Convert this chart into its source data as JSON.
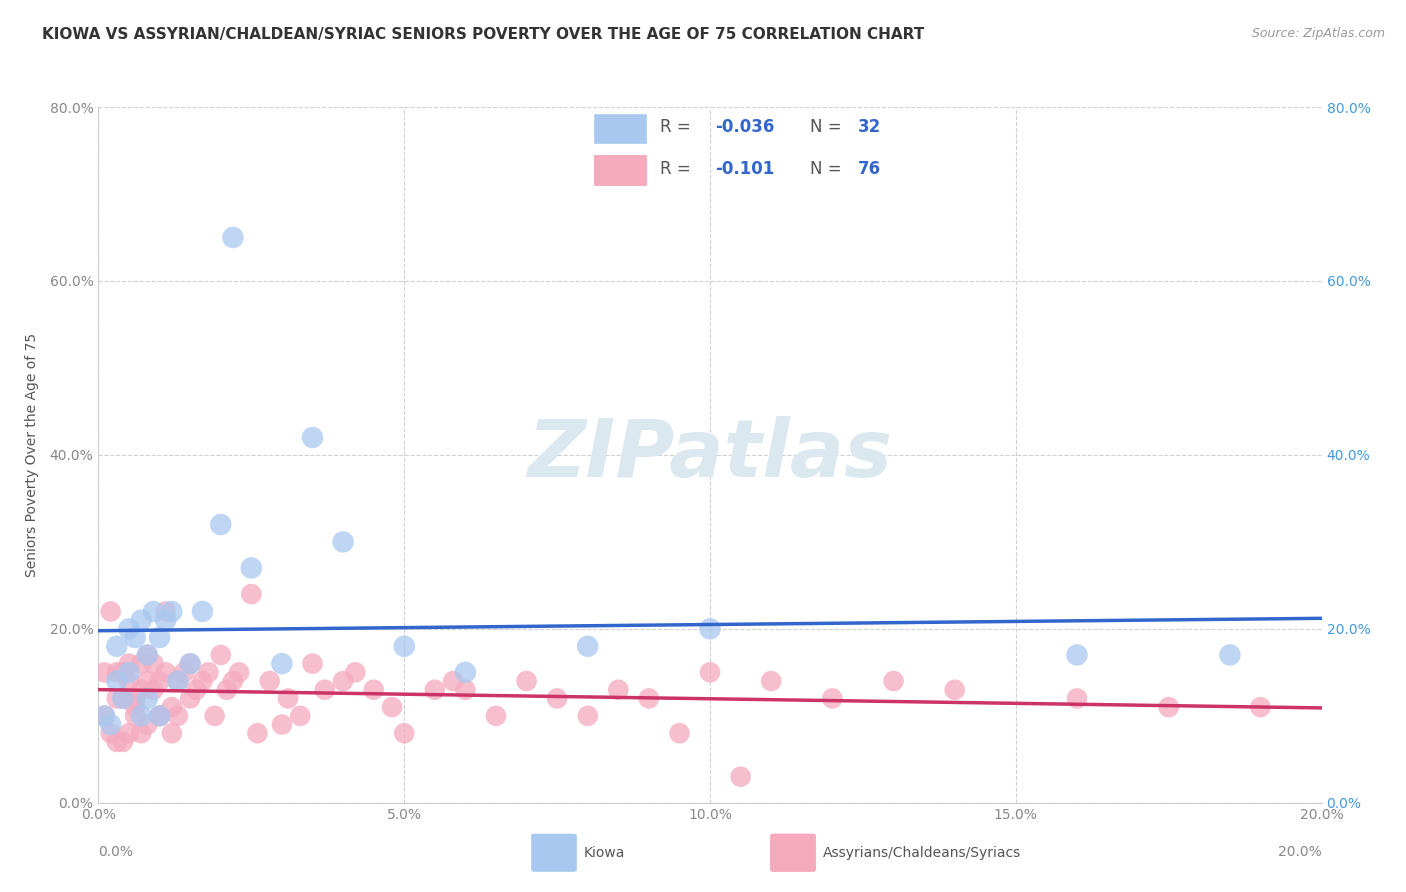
{
  "title": "KIOWA VS ASSYRIAN/CHALDEAN/SYRIAC SENIORS POVERTY OVER THE AGE OF 75 CORRELATION CHART",
  "source": "Source: ZipAtlas.com",
  "ylabel": "Seniors Poverty Over the Age of 75",
  "xlim": [
    0.0,
    0.2
  ],
  "ylim": [
    0.0,
    0.8
  ],
  "xticks": [
    0.0,
    0.05,
    0.1,
    0.15,
    0.2
  ],
  "yticks": [
    0.0,
    0.2,
    0.4,
    0.6,
    0.8
  ],
  "xtick_labels": [
    "0.0%",
    "5.0%",
    "10.0%",
    "15.0%",
    "20.0%"
  ],
  "ytick_labels": [
    "0.0%",
    "20.0%",
    "40.0%",
    "60.0%",
    "80.0%"
  ],
  "kiowa_R": -0.036,
  "kiowa_N": 32,
  "assyrian_R": -0.101,
  "assyrian_N": 76,
  "kiowa_color": "#a8c8f0",
  "assyrian_color": "#f5aabe",
  "trend_kiowa_color": "#3366cc",
  "trend_assyrian_color": "#cc3366",
  "background_color": "#ffffff",
  "grid_color": "#cccccc",
  "title_color": "#333333",
  "right_ytick_color": "#4499dd",
  "watermark_text_color": "#dce8f0",
  "legend_label_kiowa": "Kiowa",
  "legend_label_assyrian": "Assyrians/Chaldeans/Syriacs",
  "legend_text_color": "#3366cc",
  "kiowa_x": [
    0.001,
    0.002,
    0.003,
    0.003,
    0.004,
    0.005,
    0.005,
    0.006,
    0.007,
    0.007,
    0.008,
    0.008,
    0.009,
    0.01,
    0.01,
    0.011,
    0.012,
    0.013,
    0.015,
    0.017,
    0.02,
    0.022,
    0.025,
    0.03,
    0.035,
    0.04,
    0.05,
    0.06,
    0.08,
    0.1,
    0.16,
    0.185
  ],
  "kiowa_y": [
    0.1,
    0.09,
    0.18,
    0.14,
    0.12,
    0.2,
    0.15,
    0.19,
    0.1,
    0.21,
    0.17,
    0.12,
    0.22,
    0.19,
    0.1,
    0.21,
    0.22,
    0.14,
    0.16,
    0.22,
    0.32,
    0.65,
    0.27,
    0.16,
    0.42,
    0.3,
    0.18,
    0.15,
    0.18,
    0.2,
    0.17,
    0.17
  ],
  "assyrian_x": [
    0.001,
    0.001,
    0.002,
    0.002,
    0.003,
    0.003,
    0.003,
    0.004,
    0.004,
    0.004,
    0.005,
    0.005,
    0.005,
    0.006,
    0.006,
    0.006,
    0.007,
    0.007,
    0.007,
    0.008,
    0.008,
    0.008,
    0.009,
    0.009,
    0.01,
    0.01,
    0.01,
    0.011,
    0.011,
    0.012,
    0.012,
    0.013,
    0.013,
    0.014,
    0.015,
    0.015,
    0.016,
    0.017,
    0.018,
    0.019,
    0.02,
    0.021,
    0.022,
    0.023,
    0.025,
    0.026,
    0.028,
    0.03,
    0.031,
    0.033,
    0.035,
    0.037,
    0.04,
    0.042,
    0.045,
    0.048,
    0.05,
    0.055,
    0.058,
    0.06,
    0.065,
    0.07,
    0.075,
    0.08,
    0.085,
    0.09,
    0.095,
    0.1,
    0.105,
    0.11,
    0.12,
    0.13,
    0.14,
    0.16,
    0.175,
    0.19
  ],
  "assyrian_y": [
    0.15,
    0.1,
    0.22,
    0.08,
    0.12,
    0.07,
    0.15,
    0.12,
    0.07,
    0.15,
    0.14,
    0.08,
    0.16,
    0.11,
    0.1,
    0.12,
    0.16,
    0.13,
    0.08,
    0.14,
    0.17,
    0.09,
    0.13,
    0.16,
    0.14,
    0.1,
    0.1,
    0.15,
    0.22,
    0.11,
    0.08,
    0.14,
    0.1,
    0.15,
    0.16,
    0.12,
    0.13,
    0.14,
    0.15,
    0.1,
    0.17,
    0.13,
    0.14,
    0.15,
    0.24,
    0.08,
    0.14,
    0.09,
    0.12,
    0.1,
    0.16,
    0.13,
    0.14,
    0.15,
    0.13,
    0.11,
    0.08,
    0.13,
    0.14,
    0.13,
    0.1,
    0.14,
    0.12,
    0.1,
    0.13,
    0.12,
    0.08,
    0.15,
    0.03,
    0.14,
    0.12,
    0.14,
    0.13,
    0.12,
    0.11,
    0.11
  ]
}
